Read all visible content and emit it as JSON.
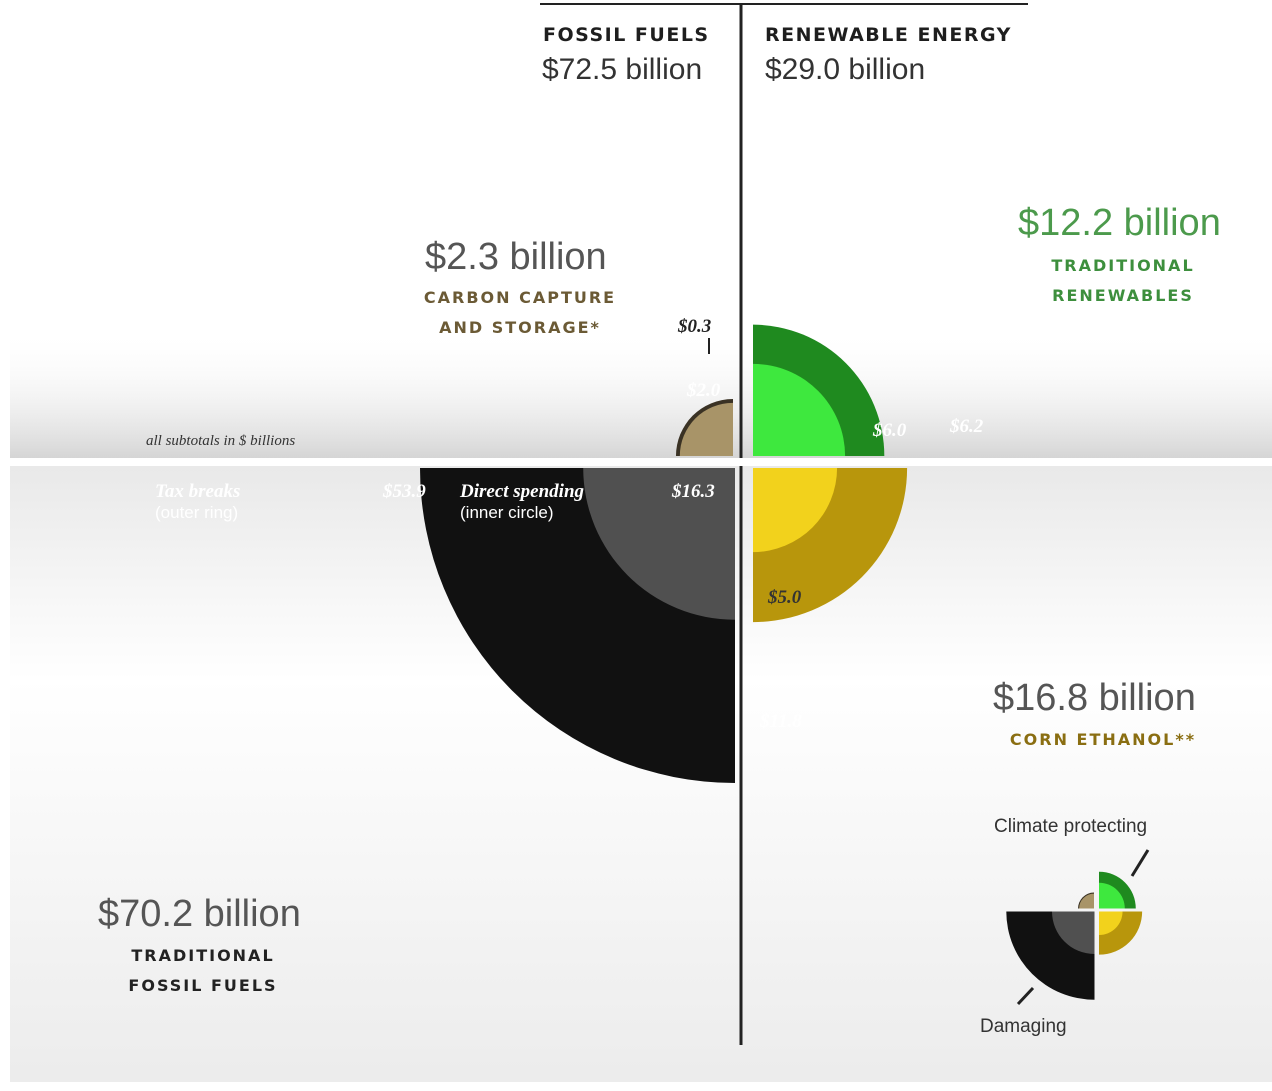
{
  "headers": {
    "fossil": {
      "label": "FOSSIL FUELS",
      "total": "$72.5 billion"
    },
    "renewable": {
      "label": "RENEWABLE ENERGY",
      "total": "$29.0 billion"
    }
  },
  "note": "all subtotals in $ billions",
  "legend": {
    "tax_breaks": "Tax breaks",
    "tax_breaks_sub": "(outer ring)",
    "direct_spending": "Direct spending",
    "direct_spending_sub": "(inner circle)"
  },
  "mini_legend": {
    "top": "Climate protecting",
    "bottom": "Damaging"
  },
  "colors": {
    "fossil_outer": "#111111",
    "fossil_inner": "#505050",
    "ccs_outer": "#3a3224",
    "ccs_inner": "#a89468",
    "renew_outer": "#1f8a1f",
    "renew_inner": "#3ee83e",
    "corn_outer": "#b8960c",
    "corn_inner": "#f2d21c"
  },
  "chart_data": {
    "type": "nested-quarter-pie",
    "groups": [
      {
        "name": "TRADITIONAL FOSSIL FUELS",
        "total": "$70.2 billion",
        "tax_breaks": 53.9,
        "direct_spending": 16.3,
        "tax_label": "$53.9",
        "direct_label": "$16.3",
        "caption": [
          "TRADITIONAL",
          "FOSSIL FUELS"
        ]
      },
      {
        "name": "CARBON CAPTURE AND STORAGE*",
        "total": "$2.3 billion",
        "tax_breaks": 0.3,
        "direct_spending": 2.0,
        "tax_label": "$0.3",
        "direct_label": "$2.0",
        "caption": [
          "CARBON CAPTURE",
          "AND STORAGE*"
        ]
      },
      {
        "name": "TRADITIONAL RENEWABLES",
        "total": "$12.2 billion",
        "tax_breaks": 6.2,
        "direct_spending": 6.0,
        "tax_label": "$6.2",
        "direct_label": "$6.0",
        "caption": [
          "TRADITIONAL",
          "RENEWABLES"
        ]
      },
      {
        "name": "CORN ETHANOL**",
        "total": "$16.8 billion",
        "tax_breaks": 11.8,
        "direct_spending": 5.0,
        "tax_label": "$11.8",
        "direct_label": "$5.0",
        "caption": [
          "CORN ETHANOL**"
        ]
      }
    ]
  }
}
